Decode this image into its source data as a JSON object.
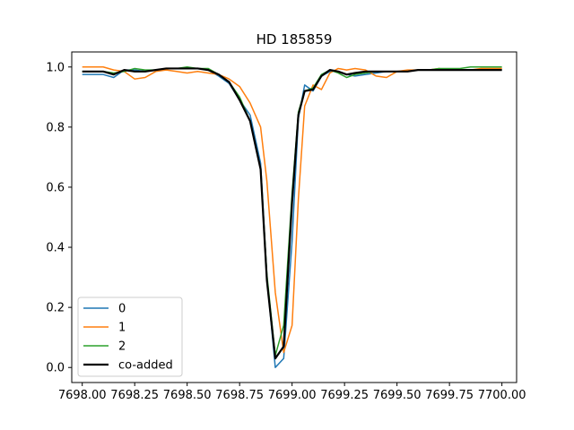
{
  "chart_data": {
    "type": "line",
    "title": "HD 185859",
    "xlabel": "",
    "ylabel": "",
    "xlim": [
      7697.95,
      7700.07
    ],
    "ylim": [
      -0.05,
      1.05
    ],
    "xticks": [
      7698.0,
      7698.25,
      7698.5,
      7698.75,
      7699.0,
      7699.25,
      7699.5,
      7699.75,
      7700.0
    ],
    "xtick_labels": [
      "7698.00",
      "7698.25",
      "7698.50",
      "7698.75",
      "7699.00",
      "7699.25",
      "7699.50",
      "7699.75",
      "7700.00"
    ],
    "yticks": [
      0.0,
      0.2,
      0.4,
      0.6,
      0.8,
      1.0
    ],
    "ytick_labels": [
      "0.0",
      "0.2",
      "0.4",
      "0.6",
      "0.8",
      "1.0"
    ],
    "grid": false,
    "legend_position": "lower-left",
    "x": [
      7698.0,
      7698.05,
      7698.1,
      7698.15,
      7698.2,
      7698.25,
      7698.3,
      7698.35,
      7698.4,
      7698.45,
      7698.5,
      7698.55,
      7698.6,
      7698.65,
      7698.7,
      7698.75,
      7698.8,
      7698.85,
      7698.88,
      7698.92,
      7698.96,
      7699.0,
      7699.03,
      7699.06,
      7699.1,
      7699.14,
      7699.18,
      7699.22,
      7699.26,
      7699.3,
      7699.35,
      7699.4,
      7699.45,
      7699.5,
      7699.55,
      7699.6,
      7699.65,
      7699.7,
      7699.75,
      7699.8,
      7699.85,
      7699.9,
      7699.95,
      7700.0
    ],
    "series": [
      {
        "name": "0",
        "color": "#1f77b4",
        "width": 1.5,
        "values": [
          0.975,
          0.975,
          0.975,
          0.965,
          0.99,
          0.99,
          0.985,
          0.99,
          0.995,
          0.995,
          0.995,
          0.995,
          0.99,
          0.97,
          0.945,
          0.89,
          0.84,
          0.68,
          0.3,
          0.0,
          0.03,
          0.42,
          0.83,
          0.94,
          0.92,
          0.97,
          0.985,
          0.985,
          0.975,
          0.97,
          0.975,
          0.98,
          0.985,
          0.985,
          0.985,
          0.99,
          0.99,
          0.99,
          0.99,
          0.99,
          0.99,
          0.99,
          0.99,
          0.99
        ]
      },
      {
        "name": "1",
        "color": "#ff7f0e",
        "width": 1.5,
        "values": [
          1.0,
          1.0,
          1.0,
          0.99,
          0.985,
          0.96,
          0.965,
          0.985,
          0.99,
          0.985,
          0.98,
          0.985,
          0.98,
          0.975,
          0.96,
          0.935,
          0.88,
          0.8,
          0.62,
          0.25,
          0.05,
          0.14,
          0.56,
          0.87,
          0.94,
          0.925,
          0.98,
          0.995,
          0.99,
          0.995,
          0.99,
          0.97,
          0.965,
          0.985,
          0.99,
          0.99,
          0.99,
          0.995,
          0.99,
          0.99,
          0.99,
          0.995,
          0.995,
          0.995
        ]
      },
      {
        "name": "2",
        "color": "#2ca02c",
        "width": 1.5,
        "values": [
          0.985,
          0.985,
          0.985,
          0.98,
          0.985,
          0.995,
          0.99,
          0.99,
          0.995,
          0.995,
          1.0,
          0.995,
          0.995,
          0.975,
          0.95,
          0.9,
          0.82,
          0.66,
          0.31,
          0.04,
          0.14,
          0.58,
          0.85,
          0.92,
          0.93,
          0.975,
          0.99,
          0.98,
          0.965,
          0.975,
          0.98,
          0.985,
          0.985,
          0.985,
          0.985,
          0.99,
          0.99,
          0.995,
          0.995,
          0.995,
          1.0,
          1.0,
          1.0,
          1.0
        ]
      },
      {
        "name": "co-added",
        "color": "#000000",
        "width": 2.2,
        "values": [
          0.985,
          0.985,
          0.985,
          0.975,
          0.99,
          0.985,
          0.985,
          0.99,
          0.995,
          0.995,
          0.995,
          0.995,
          0.99,
          0.975,
          0.95,
          0.89,
          0.82,
          0.66,
          0.29,
          0.03,
          0.07,
          0.55,
          0.84,
          0.92,
          0.925,
          0.97,
          0.99,
          0.985,
          0.975,
          0.98,
          0.985,
          0.985,
          0.985,
          0.985,
          0.985,
          0.99,
          0.99,
          0.99,
          0.99,
          0.99,
          0.99,
          0.99,
          0.99,
          0.99
        ]
      }
    ]
  }
}
